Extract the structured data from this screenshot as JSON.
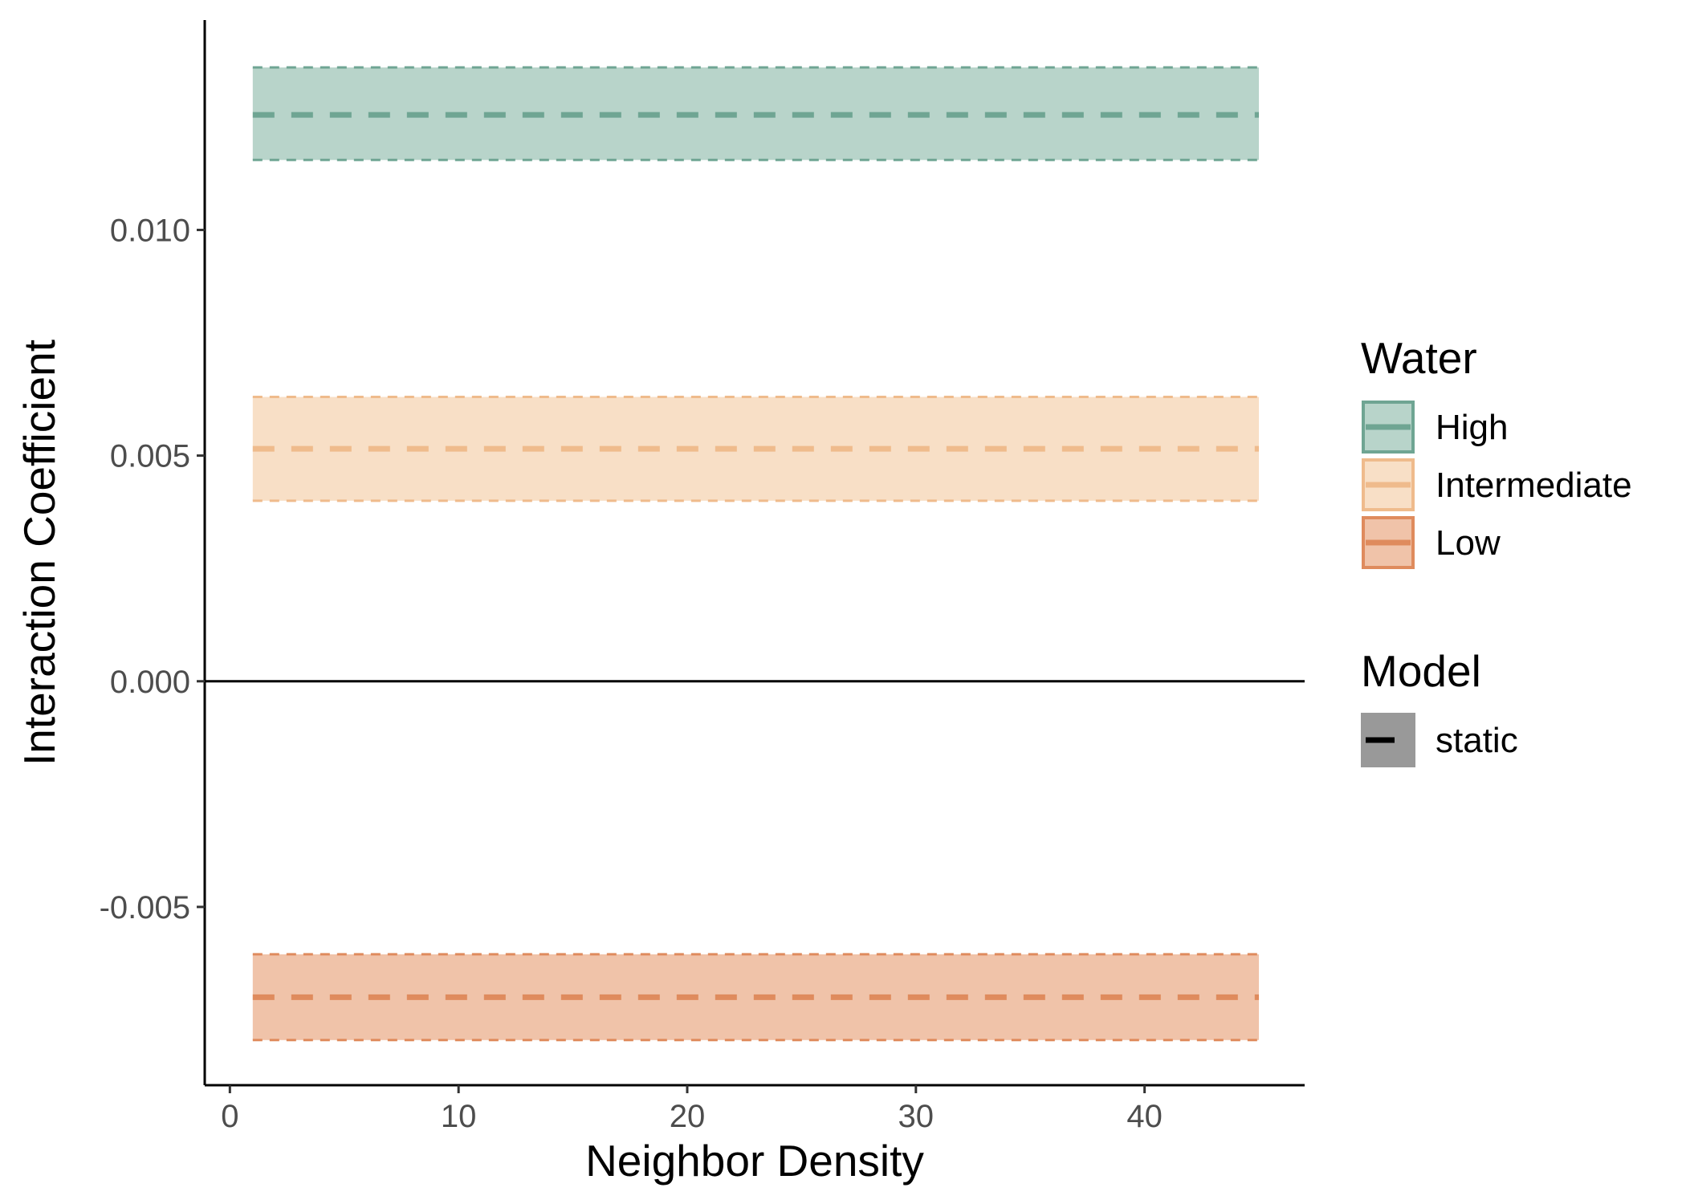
{
  "chart_data": {
    "type": "area",
    "xlabel": "Neighbor Density",
    "ylabel": "Interaction Coefficient",
    "xlim": [
      -1.1,
      47
    ],
    "ylim": [
      -0.00895,
      0.01465
    ],
    "x_ticks": [
      {
        "value": 0,
        "label": "0"
      },
      {
        "value": 10,
        "label": "10"
      },
      {
        "value": 20,
        "label": "20"
      },
      {
        "value": 30,
        "label": "30"
      },
      {
        "value": 40,
        "label": "40"
      }
    ],
    "y_ticks": [
      {
        "value": -0.005,
        "label": "-0.005"
      },
      {
        "value": 0.0,
        "label": "0.000"
      },
      {
        "value": 0.005,
        "label": "0.005"
      },
      {
        "value": 0.01,
        "label": "0.010"
      }
    ],
    "reference_line_y": 0,
    "grid": false,
    "x_range": [
      1,
      45
    ],
    "series": [
      {
        "name": "High",
        "estimate": 0.01255,
        "lower": 0.01155,
        "upper": 0.0136,
        "fill": "#b8d4ca",
        "line": "#6fa593"
      },
      {
        "name": "Intermediate",
        "estimate": 0.00515,
        "lower": 0.004,
        "upper": 0.0063,
        "fill": "#f8dfc6",
        "line": "#efbb8c"
      },
      {
        "name": "Low",
        "estimate": -0.007,
        "lower": -0.00795,
        "upper": -0.00605,
        "fill": "#f0c3a9",
        "line": "#df8b5d"
      }
    ],
    "legend": {
      "position": "right",
      "water_title": "Water",
      "model_title": "Model",
      "model_items": [
        {
          "label": "static",
          "fill": "#999999",
          "line": "#000000"
        }
      ]
    }
  }
}
